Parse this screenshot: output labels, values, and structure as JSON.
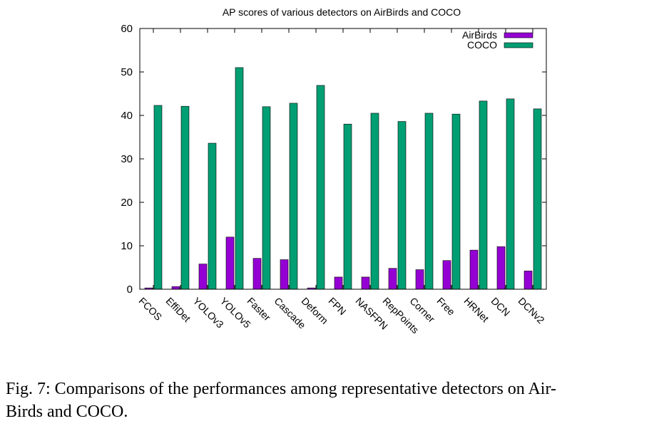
{
  "chart_data": {
    "type": "bar",
    "title": "AP scores of various detectors on AirBirds and COCO",
    "xlabel": "",
    "ylabel": "",
    "ylim": [
      0,
      60
    ],
    "yticks": [
      0,
      10,
      20,
      30,
      40,
      50,
      60
    ],
    "legend_position": "top-right",
    "categories": [
      "FCOS",
      "EffiDet",
      "YOLOv3",
      "YOLOv5",
      "Faster",
      "Cascade",
      "Deform",
      "FPN",
      "NASFPN",
      "RepPoints",
      "Corner",
      "Free",
      "HRNet",
      "DCN",
      "DCNv2"
    ],
    "series": [
      {
        "name": "AirBirds",
        "color": "#9400d3",
        "values": [
          0.3,
          0.6,
          5.8,
          12.0,
          7.1,
          6.8,
          0.3,
          2.8,
          2.8,
          4.8,
          4.5,
          6.6,
          9.0,
          9.8,
          4.2
        ]
      },
      {
        "name": "COCO",
        "color": "#009e73",
        "values": [
          42.3,
          42.1,
          33.6,
          51.0,
          42.0,
          42.8,
          46.9,
          38.0,
          40.5,
          38.6,
          40.5,
          40.3,
          43.3,
          43.8,
          41.5
        ]
      }
    ]
  },
  "caption": {
    "line1": "Fig. 7: Comparisons of the performances among representative detectors on Air-",
    "line2": "Birds and COCO."
  }
}
